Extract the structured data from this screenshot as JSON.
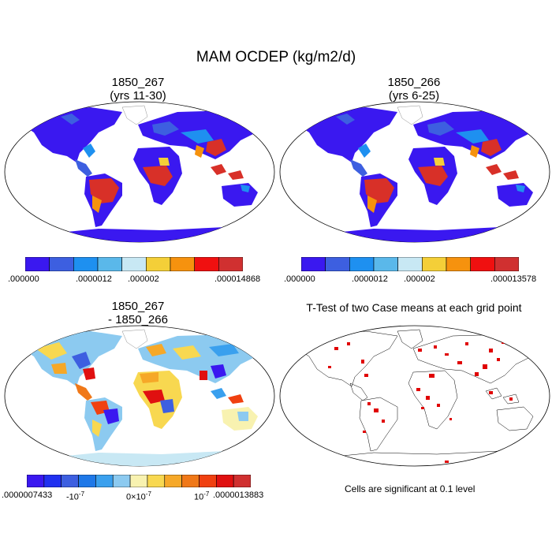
{
  "title": "MAM OCDEP (kg/m2/d)",
  "panels": [
    {
      "id": "p1",
      "title_line1": "1850_267",
      "title_line2": "(yrs 11-30)",
      "kind": "field"
    },
    {
      "id": "p2",
      "title_line1": "1850_266",
      "title_line2": "(yrs 6-25)",
      "kind": "field"
    },
    {
      "id": "p3",
      "title_line1": "1850_267",
      "title_line2": "- 1850_266",
      "kind": "difference"
    },
    {
      "id": "p4",
      "title_line1": "T-Test of two Case means at each grid point",
      "title_line2": "",
      "kind": "ttest"
    }
  ],
  "colorbars": {
    "cb1": {
      "colors": [
        "#3a18f0",
        "#3d5fe0",
        "#1e90f0",
        "#5ab8ea",
        "#c8e8f4",
        "#f4cf38",
        "#f6920e",
        "#f01010",
        "#d03030"
      ],
      "labels": [
        ".000000",
        ".0000012",
        ".000002",
        ".000014868"
      ]
    },
    "cb2": {
      "colors": [
        "#3a18f0",
        "#3d5fe0",
        "#1e90f0",
        "#5ab8ea",
        "#c8e8f4",
        "#f4cf38",
        "#f6920e",
        "#f01010",
        "#d03030"
      ],
      "labels": [
        ".000000",
        ".0000012",
        ".000002",
        ".000013578"
      ]
    },
    "cb3": {
      "colors": [
        "#3a18f0",
        "#2030f0",
        "#3d5fe0",
        "#1e78e8",
        "#3aa0ee",
        "#8ccaf0",
        "#f8f2b0",
        "#f8d850",
        "#f6a828",
        "#f07818",
        "#f04010",
        "#e01010",
        "#d03030"
      ],
      "labels": [
        ".0000007433",
        "-10",
        "-7",
        "0×10",
        "-7",
        "10",
        "-7",
        ".0000013883"
      ]
    }
  },
  "note": "Cells are significant at 0.1 level",
  "colors": {
    "ocean": "#ffffff",
    "land_low": "#3a18f0",
    "land_high": "#d83028",
    "significant": "#e00000"
  }
}
